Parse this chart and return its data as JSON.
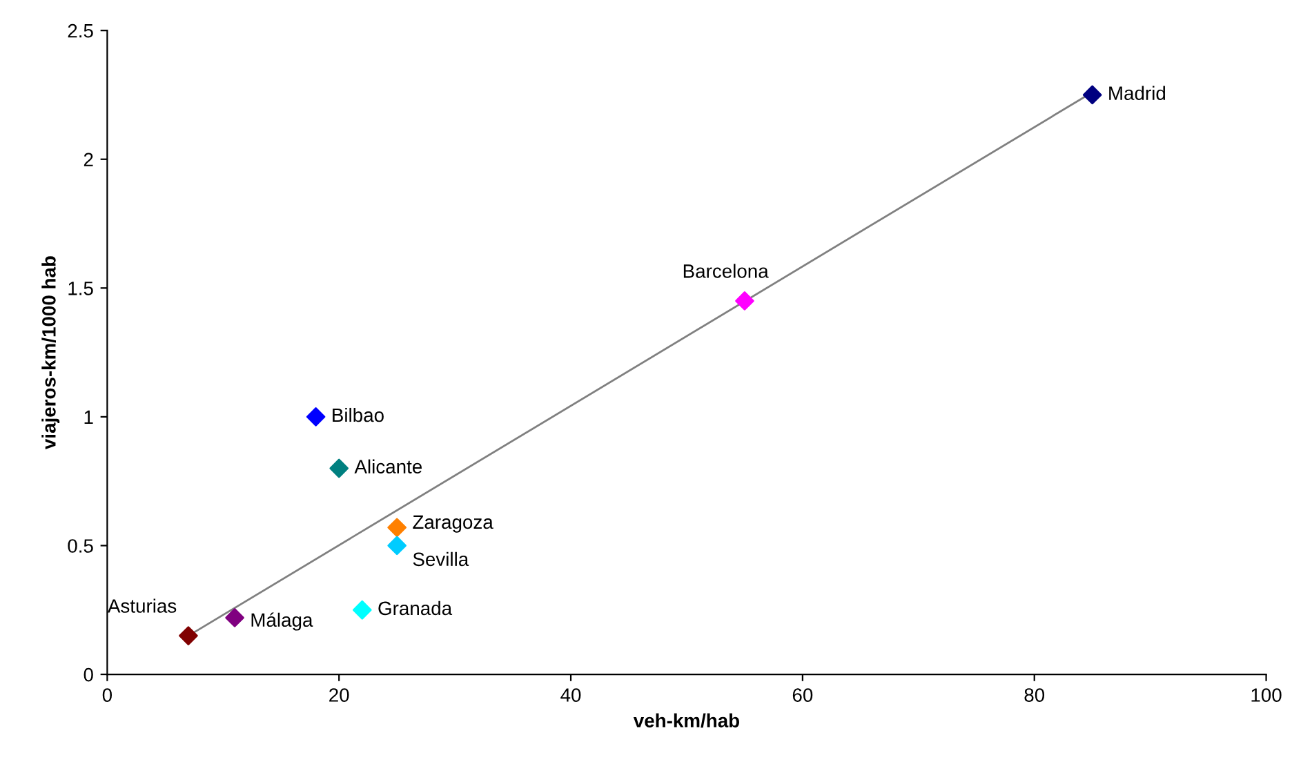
{
  "chart_data": {
    "type": "scatter",
    "xlabel": "veh-km/hab",
    "ylabel": "viajeros-km/1000 hab",
    "xlim": [
      0,
      100
    ],
    "ylim": [
      0,
      2.5
    ],
    "xticks": [
      0,
      20,
      40,
      60,
      80,
      100
    ],
    "yticks": [
      0,
      0.5,
      1,
      1.5,
      2,
      2.5
    ],
    "marker": "diamond",
    "grid": false,
    "legend": false,
    "series": [
      {
        "name": "Madrid",
        "color": "#000080",
        "x": [
          85
        ],
        "values": [
          2.25
        ]
      },
      {
        "name": "Barcelona",
        "color": "#ff00ff",
        "x": [
          55
        ],
        "values": [
          1.45
        ]
      },
      {
        "name": "Bilbao",
        "color": "#0000ff",
        "x": [
          18
        ],
        "values": [
          1.0
        ]
      },
      {
        "name": "Alicante",
        "color": "#008080",
        "x": [
          20
        ],
        "values": [
          0.8
        ]
      },
      {
        "name": "Zaragoza",
        "color": "#ff8000",
        "x": [
          25
        ],
        "values": [
          0.57
        ]
      },
      {
        "name": "Sevilla",
        "color": "#00ccff",
        "x": [
          25
        ],
        "values": [
          0.5
        ]
      },
      {
        "name": "Granada",
        "color": "#00ffff",
        "x": [
          22
        ],
        "values": [
          0.25
        ]
      },
      {
        "name": "Málaga",
        "color": "#800080",
        "x": [
          11
        ],
        "values": [
          0.22
        ]
      },
      {
        "name": "Asturias",
        "color": "#800000",
        "x": [
          7
        ],
        "values": [
          0.15
        ]
      },
      {
        "type": "line",
        "color": "#808080",
        "x": [
          7,
          85
        ],
        "values": [
          0.15,
          2.26
        ],
        "marker": "none"
      }
    ]
  }
}
